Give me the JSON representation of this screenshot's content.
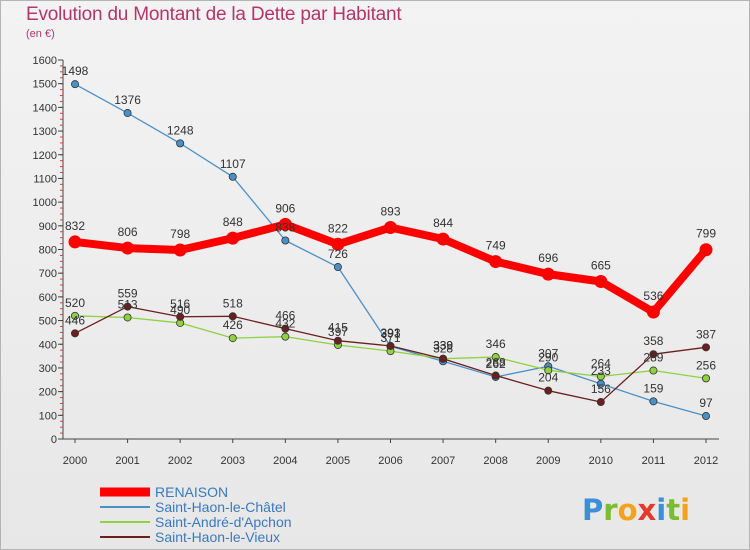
{
  "header": {
    "title": "Evolution du Montant de la Dette par Habitant",
    "subtitle": "(en €)"
  },
  "brand": {
    "logo_text": "Proxiti"
  },
  "chart_data": {
    "type": "line",
    "title": "Evolution du Montant de la Dette par Habitant",
    "subtitle": "(en €)",
    "xlabel": "",
    "ylabel": "",
    "x": [
      2000,
      2001,
      2002,
      2003,
      2004,
      2005,
      2006,
      2007,
      2008,
      2009,
      2010,
      2011,
      2012
    ],
    "ylim": [
      0,
      1600
    ],
    "yticks": [
      0,
      100,
      200,
      300,
      400,
      500,
      600,
      700,
      800,
      900,
      1000,
      1100,
      1200,
      1300,
      1400,
      1500,
      1600
    ],
    "grid": false,
    "legend_position": "bottom-left",
    "series": [
      {
        "name": "RENAISON",
        "color": "#ff0000",
        "emphasis": true,
        "values": [
          832,
          806,
          798,
          848,
          906,
          822,
          893,
          844,
          749,
          696,
          665,
          536,
          799
        ]
      },
      {
        "name": "Saint-Haon-le-Châtel",
        "color": "#4a90c8",
        "values": [
          1498,
          1376,
          1248,
          1107,
          838,
          726,
          391,
          328,
          262,
          307,
          233,
          159,
          97
        ]
      },
      {
        "name": "Saint-André-d'Apchon",
        "color": "#8fd13f",
        "values": [
          520,
          513,
          490,
          426,
          432,
          397,
          371,
          339,
          346,
          290,
          264,
          289,
          256
        ]
      },
      {
        "name": "Saint-Haon-le-Vieux",
        "color": "#6b1f1f",
        "values": [
          446,
          559,
          516,
          518,
          466,
          415,
          393,
          339,
          268,
          204,
          156,
          358,
          387
        ]
      }
    ]
  }
}
